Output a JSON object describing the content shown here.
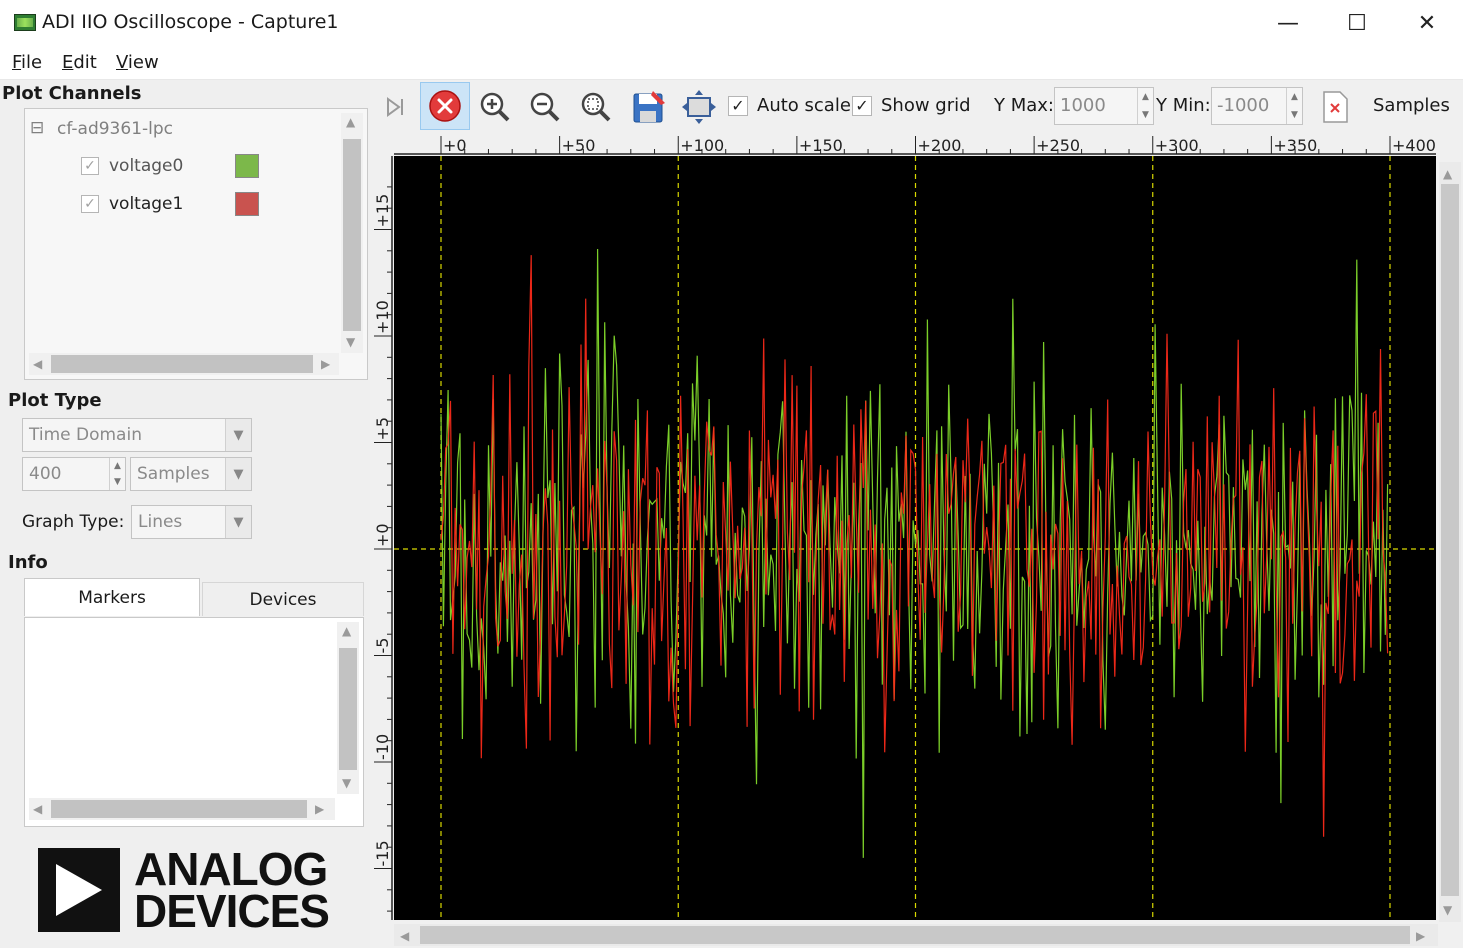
{
  "window": {
    "title": "ADI IIO Oscilloscope - Capture1",
    "controls": {
      "minimize": "—",
      "maximize": "☐",
      "close": "✕"
    }
  },
  "menu": [
    {
      "u": "F",
      "rest": "ile"
    },
    {
      "u": "E",
      "rest": "dit"
    },
    {
      "u": "V",
      "rest": "iew"
    }
  ],
  "left_panel": {
    "plot_channels_title": "Plot Channels",
    "device": {
      "toggle": "⊟",
      "name": "cf-ad9361-lpc"
    },
    "channels": [
      {
        "name": "voltage0",
        "checked": "✓",
        "color": "#7cb84a"
      },
      {
        "name": "voltage1",
        "checked": "✓",
        "color": "#c9534f"
      }
    ],
    "plot_type_title": "Plot Type",
    "plot_type_value": "Time Domain",
    "sample_count": "400",
    "sample_unit": "Samples",
    "graph_type_label": "Graph Type:",
    "graph_type_value": "Lines",
    "info_title": "Info",
    "tabs": [
      "Markers",
      "Devices"
    ],
    "logo_lines": [
      "ANALOG",
      "DEVICES"
    ]
  },
  "toolbar": {
    "auto_scale_label": "Auto scale",
    "auto_scale_checked": "✓",
    "show_grid_label": "Show grid",
    "show_grid_checked": "✓",
    "y_max_label": "Y Max:",
    "y_max_value": "1000",
    "y_min_label": "Y Min:",
    "y_min_value": "-1000",
    "samples_label": "Samples"
  },
  "colors": {
    "plot_bg": "#000000",
    "channel0": "#86e02c",
    "channel1": "#ff2a1a",
    "grid": "#d9d900",
    "stop_button": "#e23b3b"
  },
  "chart_data": {
    "type": "line",
    "title": "",
    "x_axis": {
      "min": 0,
      "max": 400,
      "ticks": [
        "+0",
        "+50",
        "+100",
        "+150",
        "+200",
        "+250",
        "+300",
        "+350",
        "+400"
      ]
    },
    "y_axis": {
      "min": -17,
      "max": 17,
      "ticks": [
        "+15",
        "+10",
        "+5",
        "+0",
        "-5",
        "-10",
        "-15"
      ],
      "tick_values": [
        15,
        10,
        5,
        0,
        -5,
        -10,
        -15
      ]
    },
    "grid": true,
    "series": [
      {
        "name": "voltage0",
        "color": "#86e02c",
        "samples": 400,
        "amplitude_peak": 14.5,
        "seed": 11
      },
      {
        "name": "voltage1",
        "color": "#ff2a1a",
        "samples": 400,
        "amplitude_peak": 13.8,
        "seed": 29
      }
    ]
  }
}
